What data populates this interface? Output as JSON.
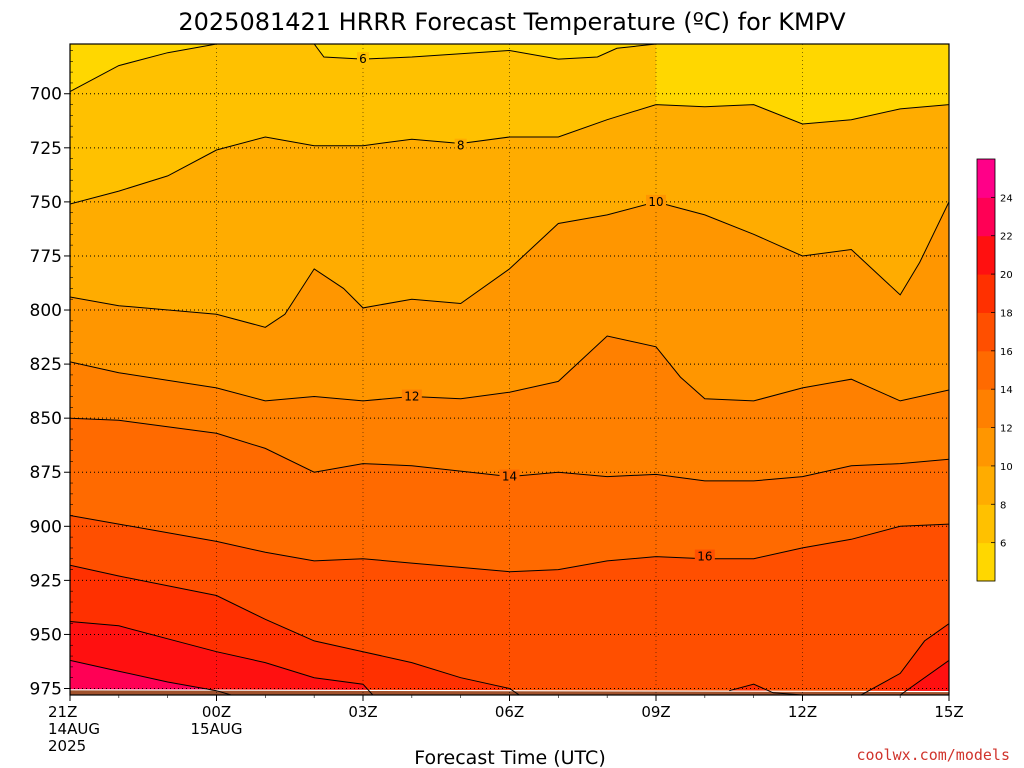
{
  "chart_data": {
    "type": "heatmap",
    "title": "2025081421 HRRR Forecast Temperature (ºC) for KMPV",
    "xlabel": "Forecast Time (UTC)",
    "ylabel": "",
    "x_ticks": [
      {
        "lines": [
          "21Z",
          "14AUG",
          "2025"
        ],
        "hour": 0
      },
      {
        "lines": [
          "00Z",
          "15AUG"
        ],
        "hour": 3
      },
      {
        "lines": [
          "03Z"
        ],
        "hour": 6
      },
      {
        "lines": [
          "06Z"
        ],
        "hour": 9
      },
      {
        "lines": [
          "09Z"
        ],
        "hour": 12
      },
      {
        "lines": [
          "12Z"
        ],
        "hour": 15
      },
      {
        "lines": [
          "15Z"
        ],
        "hour": 18
      }
    ],
    "xlim": [
      0,
      18
    ],
    "y_ticks": [
      "700",
      "725",
      "750",
      "775",
      "800",
      "825",
      "850",
      "875",
      "900",
      "925",
      "950",
      "975"
    ],
    "ylim_hpa": [
      978,
      677
    ],
    "colorbar": {
      "levels": [
        4,
        6,
        8,
        10,
        12,
        14,
        16,
        18,
        20,
        22,
        24,
        26
      ],
      "tick_labels": [
        "6",
        "8",
        "10",
        "12",
        "14",
        "16",
        "18",
        "20",
        "22",
        "24"
      ],
      "colors": [
        "#ffd700",
        "#ffc100",
        "#ffac00",
        "#ff9600",
        "#ff8000",
        "#ff6a00",
        "#ff4f00",
        "#ff3000",
        "#ff1010",
        "#ff0055",
        "#ff0088"
      ]
    },
    "contours": [
      {
        "level": 6,
        "label": "6",
        "label_at": {
          "hour": 6.0,
          "hpa": 684
        },
        "points": [
          [
            0,
            699
          ],
          [
            1,
            687
          ],
          [
            2,
            681
          ],
          [
            3,
            677
          ],
          [
            5,
            677
          ],
          [
            5.2,
            683
          ],
          [
            6,
            684
          ],
          [
            7,
            683
          ],
          [
            9,
            680
          ],
          [
            10,
            684
          ],
          [
            10.8,
            683
          ],
          [
            11.2,
            679
          ],
          [
            12,
            677
          ]
        ]
      },
      {
        "level": 8,
        "label": "8",
        "label_at": {
          "hour": 8.0,
          "hpa": 724
        },
        "points": [
          [
            0,
            751
          ],
          [
            1,
            745
          ],
          [
            2,
            738
          ],
          [
            3,
            726
          ],
          [
            4,
            720
          ],
          [
            5,
            724
          ],
          [
            6,
            724
          ],
          [
            7,
            721
          ],
          [
            8,
            723
          ],
          [
            9,
            720
          ],
          [
            10,
            720
          ],
          [
            11,
            712
          ],
          [
            12,
            705
          ],
          [
            13,
            706
          ],
          [
            14,
            705
          ],
          [
            15,
            714
          ],
          [
            16,
            712
          ],
          [
            17,
            707
          ],
          [
            18,
            705
          ]
        ]
      },
      {
        "level": 10,
        "label": "10",
        "label_at": {
          "hour": 12.0,
          "hpa": 750
        },
        "points": [
          [
            0,
            794
          ],
          [
            1,
            798
          ],
          [
            3,
            802
          ],
          [
            4,
            808
          ],
          [
            4.4,
            802
          ],
          [
            5,
            781
          ],
          [
            5.6,
            790
          ],
          [
            6,
            799
          ],
          [
            7,
            795
          ],
          [
            8,
            797
          ],
          [
            9,
            781
          ],
          [
            10,
            760
          ],
          [
            11,
            756
          ],
          [
            12,
            750
          ],
          [
            13,
            756
          ],
          [
            14,
            765
          ],
          [
            15,
            775
          ],
          [
            16,
            772
          ],
          [
            17,
            793
          ],
          [
            17.4,
            778
          ],
          [
            18,
            750
          ]
        ]
      },
      {
        "level": 12,
        "label": "12",
        "label_at": {
          "hour": 7.0,
          "hpa": 840
        },
        "points": [
          [
            0,
            824
          ],
          [
            1,
            829
          ],
          [
            3,
            836
          ],
          [
            4,
            842
          ],
          [
            5,
            840
          ],
          [
            6,
            842
          ],
          [
            7,
            840
          ],
          [
            8,
            841
          ],
          [
            9,
            838
          ],
          [
            10,
            833
          ],
          [
            11,
            812
          ],
          [
            12,
            817
          ],
          [
            12.5,
            831
          ],
          [
            13,
            841
          ],
          [
            14,
            842
          ],
          [
            15,
            836
          ],
          [
            16,
            832
          ],
          [
            17,
            842
          ],
          [
            18,
            837
          ]
        ]
      },
      {
        "level": 14,
        "label": "14",
        "label_at": {
          "hour": 9.0,
          "hpa": 877
        },
        "points": [
          [
            0,
            850
          ],
          [
            1,
            851
          ],
          [
            3,
            857
          ],
          [
            4,
            864
          ],
          [
            5,
            875
          ],
          [
            6,
            871
          ],
          [
            7,
            872
          ],
          [
            9,
            877
          ],
          [
            10,
            875
          ],
          [
            11,
            877
          ],
          [
            12,
            876
          ],
          [
            13,
            879
          ],
          [
            14,
            879
          ],
          [
            15,
            877
          ],
          [
            16,
            872
          ],
          [
            17,
            871
          ],
          [
            18,
            869
          ]
        ]
      },
      {
        "level": 16,
        "label": "16",
        "label_at": {
          "hour": 13.0,
          "hpa": 914
        },
        "points": [
          [
            0,
            895
          ],
          [
            1,
            899
          ],
          [
            3,
            907
          ],
          [
            4,
            912
          ],
          [
            5,
            916
          ],
          [
            6,
            915
          ],
          [
            7,
            917
          ],
          [
            8,
            919
          ],
          [
            9,
            921
          ],
          [
            10,
            920
          ],
          [
            11,
            916
          ],
          [
            12,
            914
          ],
          [
            13,
            915
          ],
          [
            14,
            915
          ],
          [
            15,
            910
          ],
          [
            16,
            906
          ],
          [
            17,
            900
          ],
          [
            18,
            899
          ]
        ]
      },
      {
        "level": 18,
        "label": "",
        "label_at": null,
        "points": [
          [
            0,
            918
          ],
          [
            1,
            923
          ],
          [
            3,
            932
          ],
          [
            4,
            943
          ],
          [
            5,
            953
          ],
          [
            6,
            958
          ],
          [
            7,
            963
          ],
          [
            8,
            970
          ],
          [
            9,
            975
          ],
          [
            9.2,
            978
          ]
        ]
      },
      {
        "level": 18,
        "label": "",
        "label_at": null,
        "points": [
          [
            13.5,
            976
          ],
          [
            14,
            973
          ],
          [
            14.4,
            977
          ],
          [
            15,
            978
          ]
        ]
      },
      {
        "level": 18,
        "label": "",
        "label_at": null,
        "points": [
          [
            16.2,
            978
          ],
          [
            17,
            968
          ],
          [
            17.5,
            953
          ],
          [
            18,
            945
          ]
        ]
      },
      {
        "level": 20,
        "label": "",
        "label_at": null,
        "points": [
          [
            0,
            944
          ],
          [
            1,
            946
          ],
          [
            2,
            952
          ],
          [
            3,
            958
          ],
          [
            4,
            963
          ],
          [
            5,
            970
          ],
          [
            6,
            973
          ],
          [
            6.2,
            978
          ]
        ]
      },
      {
        "level": 20,
        "label": "",
        "label_at": null,
        "points": [
          [
            17,
            978
          ],
          [
            18,
            962
          ]
        ]
      },
      {
        "level": 22,
        "label": "",
        "label_at": null,
        "points": [
          [
            0,
            962
          ],
          [
            1,
            967
          ],
          [
            2,
            972
          ],
          [
            3,
            976
          ],
          [
            3.3,
            978
          ]
        ]
      }
    ],
    "grid": "dotted",
    "colorbar_placement": "right"
  },
  "credit": "coolwx.com/models"
}
